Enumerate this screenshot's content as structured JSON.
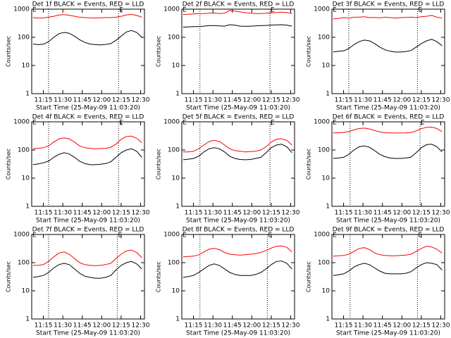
{
  "chart_data": [
    {
      "type": "line",
      "title": "Det 1f BLACK = Events, RED = LLD",
      "x_label": "Start Time (25-May-09 11:03:20)",
      "y_label": "Counts/sec",
      "log_scale": true,
      "x": [
        "11:07",
        "11:11",
        "11:15",
        "11:19",
        "11:23",
        "11:27",
        "11:31",
        "11:35",
        "11:39",
        "11:43",
        "11:47",
        "11:51",
        "11:55",
        "11:59",
        "12:03",
        "12:07",
        "12:11",
        "12:15",
        "12:19",
        "12:23",
        "12:27",
        "12:31"
      ],
      "xlim": [
        "11:06",
        "12:33"
      ],
      "xticks": [
        "11:15",
        "11:30",
        "11:45",
        "12:00",
        "12:15",
        "12:30"
      ],
      "ylim": [
        1,
        1000
      ],
      "yticks": [
        1,
        10,
        100,
        1000
      ],
      "dotted_lines": [
        "11:19",
        "12:13"
      ],
      "event_labels": [
        {
          "x": "11:06",
          "label": "E"
        },
        {
          "x": "12:13",
          "label": "E"
        }
      ],
      "series": [
        {
          "color": "#ff0000",
          "values": [
            500,
            480,
            490,
            520,
            560,
            620,
            640,
            610,
            560,
            520,
            500,
            490,
            480,
            490,
            500,
            500,
            520,
            560,
            620,
            650,
            600,
            520
          ]
        },
        {
          "color": "#000000",
          "values": [
            58,
            55,
            57,
            70,
            100,
            135,
            150,
            140,
            110,
            82,
            66,
            58,
            55,
            54,
            56,
            60,
            78,
            110,
            155,
            175,
            150,
            100
          ]
        }
      ]
    },
    {
      "type": "line",
      "title": "Det 2f BLACK = Events, RED = LLD",
      "x_label": "Start Time (25-May-09 11:03:20)",
      "y_label": "Counts/sec",
      "log_scale": true,
      "x": [
        "11:07",
        "11:11",
        "11:15",
        "11:19",
        "11:23",
        "11:27",
        "11:31",
        "11:35",
        "11:39",
        "11:43",
        "11:47",
        "11:51",
        "11:55",
        "11:59",
        "12:03",
        "12:07",
        "12:11",
        "12:15",
        "12:19",
        "12:23",
        "12:27",
        "12:31"
      ],
      "xlim": [
        "11:06",
        "12:33"
      ],
      "xticks": [
        "11:15",
        "11:30",
        "11:45",
        "12:00",
        "12:15",
        "12:30"
      ],
      "ylim": [
        1,
        1000
      ],
      "yticks": [
        1,
        10,
        100,
        1000
      ],
      "dotted_lines": [
        "11:20",
        "12:14"
      ],
      "event_labels": [
        {
          "x": "11:06",
          "label": "E"
        },
        {
          "x": "12:14",
          "label": "E"
        }
      ],
      "series": [
        {
          "color": "#ff0000",
          "values": [
            650,
            660,
            680,
            690,
            700,
            720,
            730,
            700,
            720,
            900,
            850,
            800,
            750,
            720,
            700,
            700,
            720,
            740,
            760,
            780,
            760,
            700
          ]
        },
        {
          "color": "#000000",
          "values": [
            230,
            235,
            240,
            240,
            250,
            260,
            260,
            255,
            250,
            280,
            270,
            250,
            245,
            250,
            255,
            260,
            265,
            270,
            275,
            280,
            270,
            250
          ]
        }
      ]
    },
    {
      "type": "line",
      "title": "Det 3f BLACK = Events, RED = LLD",
      "x_label": "Start Time (25-May-09 11:03:20)",
      "y_label": "Counts/sec",
      "log_scale": true,
      "x": [
        "11:07",
        "11:11",
        "11:15",
        "11:19",
        "11:23",
        "11:27",
        "11:31",
        "11:35",
        "11:39",
        "11:43",
        "11:47",
        "11:51",
        "11:55",
        "11:59",
        "12:03",
        "12:07",
        "12:11",
        "12:15",
        "12:19",
        "12:23",
        "12:27",
        "12:31"
      ],
      "xlim": [
        "11:06",
        "12:33"
      ],
      "xticks": [
        "11:15",
        "11:30",
        "11:45",
        "12:00",
        "12:15",
        "12:30"
      ],
      "ylim": [
        1,
        1000
      ],
      "yticks": [
        1,
        10,
        100,
        1000
      ],
      "dotted_lines": [
        "11:19",
        "12:12"
      ],
      "event_labels": [
        {
          "x": "11:06",
          "label": "E"
        },
        {
          "x": "12:12",
          "label": "E"
        }
      ],
      "series": [
        {
          "color": "#ff0000",
          "values": [
            450,
            470,
            500,
            480,
            520,
            520,
            540,
            500,
            510,
            490,
            520,
            500,
            480,
            500,
            510,
            520,
            500,
            540,
            560,
            600,
            520,
            480
          ]
        },
        {
          "color": "#000000",
          "values": [
            30,
            32,
            33,
            40,
            55,
            70,
            80,
            75,
            60,
            45,
            36,
            32,
            30,
            30,
            31,
            34,
            45,
            60,
            75,
            85,
            70,
            50
          ]
        }
      ]
    },
    {
      "type": "line",
      "title": "Det 4f BLACK = Events, RED = LLD",
      "x_label": "Start Time (25-May-09 11:03:20)",
      "y_label": "Counts/sec",
      "log_scale": true,
      "x": [
        "11:07",
        "11:11",
        "11:15",
        "11:19",
        "11:23",
        "11:27",
        "11:31",
        "11:35",
        "11:39",
        "11:43",
        "11:47",
        "11:51",
        "11:55",
        "11:59",
        "12:03",
        "12:07",
        "12:11",
        "12:15",
        "12:19",
        "12:23",
        "12:27",
        "12:31"
      ],
      "xlim": [
        "11:06",
        "12:33"
      ],
      "xticks": [
        "11:15",
        "11:30",
        "11:45",
        "12:00",
        "12:15",
        "12:30"
      ],
      "ylim": [
        1,
        1000
      ],
      "yticks": [
        1,
        10,
        100,
        1000
      ],
      "dotted_lines": [
        "11:19",
        "12:13"
      ],
      "event_labels": [
        {
          "x": "11:06",
          "label": "E"
        },
        {
          "x": "12:13",
          "label": "E"
        }
      ],
      "series": [
        {
          "color": "#ff0000",
          "values": [
            110,
            115,
            120,
            140,
            190,
            250,
            270,
            250,
            190,
            140,
            120,
            115,
            110,
            112,
            115,
            125,
            160,
            240,
            300,
            310,
            260,
            180
          ]
        },
        {
          "color": "#000000",
          "values": [
            30,
            32,
            35,
            40,
            55,
            70,
            80,
            72,
            55,
            40,
            33,
            30,
            30,
            31,
            33,
            38,
            55,
            80,
            100,
            110,
            90,
            55
          ]
        }
      ]
    },
    {
      "type": "line",
      "title": "Det 5f BLACK = Events, RED = LLD",
      "x_label": "Start Time (25-May-09 11:03:20)",
      "y_label": "Counts/sec",
      "log_scale": true,
      "x": [
        "11:07",
        "11:11",
        "11:15",
        "11:19",
        "11:23",
        "11:27",
        "11:31",
        "11:35",
        "11:39",
        "11:43",
        "11:47",
        "11:51",
        "11:55",
        "11:59",
        "12:03",
        "12:07",
        "12:11",
        "12:15",
        "12:19",
        "12:23",
        "12:27",
        "12:31"
      ],
      "xlim": [
        "11:06",
        "12:33"
      ],
      "xticks": [
        "11:15",
        "11:30",
        "11:45",
        "12:00",
        "12:15",
        "12:30"
      ],
      "ylim": [
        1,
        1000
      ],
      "yticks": [
        1,
        10,
        100,
        1000
      ],
      "dotted_lines": [
        "11:20",
        "12:14"
      ],
      "event_labels": [
        {
          "x": "11:06",
          "label": "E"
        },
        {
          "x": "12:14",
          "label": "E"
        }
      ],
      "series": [
        {
          "color": "#ff0000",
          "values": [
            85,
            85,
            90,
            110,
            150,
            200,
            220,
            200,
            150,
            110,
            95,
            90,
            85,
            88,
            90,
            100,
            130,
            190,
            240,
            250,
            220,
            150
          ]
        },
        {
          "color": "#000000",
          "values": [
            45,
            47,
            50,
            60,
            85,
            110,
            120,
            110,
            85,
            60,
            50,
            46,
            45,
            46,
            50,
            55,
            80,
            120,
            150,
            160,
            130,
            80
          ]
        }
      ]
    },
    {
      "type": "line",
      "title": "Det 6f BLACK = Events, RED = LLD",
      "x_label": "Start Time (25-May-09 11:03:20)",
      "y_label": "Counts/sec",
      "log_scale": true,
      "x": [
        "11:07",
        "11:11",
        "11:15",
        "11:19",
        "11:23",
        "11:27",
        "11:31",
        "11:35",
        "11:39",
        "11:43",
        "11:47",
        "11:51",
        "11:55",
        "11:59",
        "12:03",
        "12:07",
        "12:11",
        "12:15",
        "12:19",
        "12:23",
        "12:27",
        "12:31"
      ],
      "xlim": [
        "11:06",
        "12:33"
      ],
      "xticks": [
        "11:15",
        "11:30",
        "11:45",
        "12:00",
        "12:15",
        "12:30"
      ],
      "ylim": [
        1,
        1000
      ],
      "yticks": [
        1,
        10,
        100,
        1000
      ],
      "dotted_lines": [
        "11:20",
        "12:14"
      ],
      "event_labels": [
        {
          "x": "11:06",
          "label": "E"
        },
        {
          "x": "12:14",
          "label": "E"
        }
      ],
      "series": [
        {
          "color": "#ff0000",
          "values": [
            400,
            410,
            420,
            450,
            520,
            580,
            600,
            560,
            490,
            440,
            410,
            400,
            400,
            400,
            405,
            420,
            480,
            570,
            640,
            650,
            580,
            450
          ]
        },
        {
          "color": "#000000",
          "values": [
            50,
            52,
            55,
            70,
            100,
            130,
            140,
            125,
            95,
            70,
            58,
            52,
            50,
            50,
            52,
            56,
            80,
            120,
            155,
            160,
            130,
            85
          ]
        }
      ]
    },
    {
      "type": "line",
      "title": "Det 7f BLACK = Events, RED = LLD",
      "x_label": "Start Time (25-May-09 11:03:20)",
      "y_label": "Counts/sec",
      "log_scale": true,
      "x": [
        "11:07",
        "11:11",
        "11:15",
        "11:19",
        "11:23",
        "11:27",
        "11:31",
        "11:35",
        "11:39",
        "11:43",
        "11:47",
        "11:51",
        "11:55",
        "11:59",
        "12:03",
        "12:07",
        "12:11",
        "12:15",
        "12:19",
        "12:23",
        "12:27",
        "12:31"
      ],
      "xlim": [
        "11:06",
        "12:33"
      ],
      "xticks": [
        "11:15",
        "11:30",
        "11:45",
        "12:00",
        "12:15",
        "12:30"
      ],
      "ylim": [
        1,
        1000
      ],
      "yticks": [
        1,
        10,
        100,
        1000
      ],
      "dotted_lines": [
        "11:19",
        "12:12"
      ],
      "event_labels": [
        {
          "x": "11:06",
          "label": "E"
        },
        {
          "x": "12:12",
          "label": "E"
        }
      ],
      "series": [
        {
          "color": "#ff0000",
          "values": [
            80,
            80,
            85,
            110,
            160,
            220,
            240,
            200,
            140,
            100,
            85,
            80,
            78,
            80,
            85,
            95,
            140,
            200,
            260,
            280,
            230,
            150
          ]
        },
        {
          "color": "#000000",
          "values": [
            30,
            32,
            35,
            45,
            65,
            85,
            95,
            85,
            60,
            42,
            33,
            30,
            28,
            28,
            30,
            35,
            55,
            80,
            100,
            110,
            90,
            60
          ]
        }
      ]
    },
    {
      "type": "line",
      "title": "Det 8f BLACK = Events, RED = LLD",
      "x_label": "Start Time (25-May-09 11:03:20)",
      "y_label": "Counts/sec",
      "log_scale": true,
      "x": [
        "11:07",
        "11:11",
        "11:15",
        "11:19",
        "11:23",
        "11:27",
        "11:31",
        "11:35",
        "11:39",
        "11:43",
        "11:47",
        "11:51",
        "11:55",
        "11:59",
        "12:03",
        "12:07",
        "12:11",
        "12:15",
        "12:19",
        "12:23",
        "12:27",
        "12:31"
      ],
      "xlim": [
        "11:06",
        "12:33"
      ],
      "xticks": [
        "11:15",
        "11:30",
        "11:45",
        "12:00",
        "12:15",
        "12:30"
      ],
      "ylim": [
        1,
        1000
      ],
      "yticks": [
        1,
        10,
        100,
        1000
      ],
      "dotted_lines": [
        "11:20",
        "12:12"
      ],
      "event_labels": [
        {
          "x": "11:06",
          "label": "E"
        },
        {
          "x": "12:12",
          "label": "E"
        }
      ],
      "series": [
        {
          "color": "#ff0000",
          "values": [
            160,
            165,
            170,
            190,
            240,
            300,
            320,
            290,
            230,
            200,
            190,
            185,
            190,
            200,
            210,
            230,
            270,
            330,
            380,
            390,
            350,
            240
          ]
        },
        {
          "color": "#000000",
          "values": [
            30,
            32,
            35,
            45,
            60,
            80,
            90,
            80,
            60,
            45,
            38,
            35,
            35,
            35,
            38,
            45,
            60,
            85,
            110,
            115,
            95,
            60
          ]
        }
      ]
    },
    {
      "type": "line",
      "title": "Det 9f BLACK = Events, RED = LLD",
      "x_label": "Start Time (25-May-09 11:03:20)",
      "y_label": "Counts/sec",
      "log_scale": true,
      "x": [
        "11:07",
        "11:11",
        "11:15",
        "11:19",
        "11:23",
        "11:27",
        "11:31",
        "11:35",
        "11:39",
        "11:43",
        "11:47",
        "11:51",
        "11:55",
        "11:59",
        "12:03",
        "12:07",
        "12:11",
        "12:15",
        "12:19",
        "12:23",
        "12:27",
        "12:31"
      ],
      "xlim": [
        "11:06",
        "12:33"
      ],
      "xticks": [
        "11:15",
        "11:30",
        "11:45",
        "12:00",
        "12:15",
        "12:30"
      ],
      "ylim": [
        1,
        1000
      ],
      "yticks": [
        1,
        10,
        100,
        1000
      ],
      "dotted_lines": [
        "11:20",
        "12:12"
      ],
      "event_labels": [
        {
          "x": "11:06",
          "label": "E"
        },
        {
          "x": "12:12",
          "label": "E"
        }
      ],
      "series": [
        {
          "color": "#ff0000",
          "values": [
            170,
            175,
            180,
            200,
            250,
            320,
            340,
            290,
            220,
            190,
            180,
            175,
            175,
            180,
            185,
            200,
            250,
            320,
            380,
            360,
            300,
            220
          ]
        },
        {
          "color": "#000000",
          "values": [
            35,
            37,
            40,
            50,
            70,
            85,
            95,
            85,
            65,
            50,
            42,
            40,
            40,
            40,
            42,
            48,
            65,
            85,
            100,
            95,
            85,
            55
          ]
        }
      ]
    }
  ]
}
